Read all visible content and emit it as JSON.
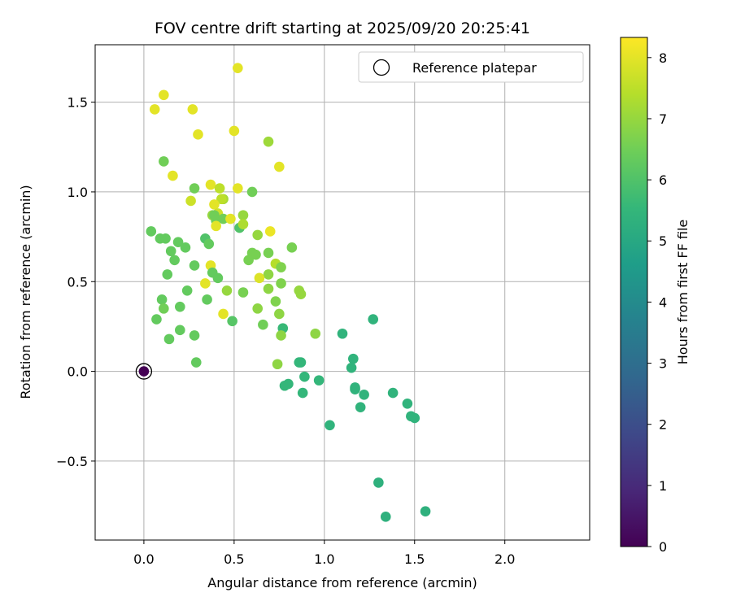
{
  "chart_data": {
    "type": "scatter",
    "title": "FOV centre drift starting at 2025/09/20 20:25:41",
    "xlabel": "Angular distance from reference (arcmin)",
    "ylabel": "Rotation from reference (arcmin)",
    "xlim": [
      -0.27,
      2.47
    ],
    "ylim": [
      -0.94,
      1.82
    ],
    "xticks": [
      0.0,
      0.5,
      1.0,
      1.5,
      2.0
    ],
    "xtick_labels": [
      "0.0",
      "0.5",
      "1.0",
      "1.5",
      "2.0"
    ],
    "yticks": [
      -0.5,
      0.0,
      0.5,
      1.0,
      1.5
    ],
    "ytick_labels": [
      "−0.5",
      "0.0",
      "0.5",
      "1.0",
      "1.5"
    ],
    "grid": true,
    "legend": {
      "position": "top-right",
      "label": "Reference platepar"
    },
    "reference_point": {
      "x": 0.0,
      "y": 0.0,
      "hours": 0.0
    },
    "colorbar": {
      "label": "Hours from first FF file",
      "min": 0,
      "max": 8.33,
      "ticks": [
        0,
        1,
        2,
        3,
        4,
        5,
        6,
        7,
        8
      ],
      "tick_labels": [
        "0",
        "1",
        "2",
        "3",
        "4",
        "5",
        "6",
        "7",
        "8"
      ],
      "colormap": "viridis",
      "colormap_stops": [
        "#440154",
        "#482878",
        "#3e4989",
        "#31688e",
        "#26828e",
        "#1f9e89",
        "#35b779",
        "#6ece58",
        "#b5de2b",
        "#fde725"
      ]
    },
    "points": [
      {
        "x": 1.56,
        "y": -0.78,
        "h": 5.3
      },
      {
        "x": 1.34,
        "y": -0.81,
        "h": 5.3
      },
      {
        "x": 1.3,
        "y": -0.62,
        "h": 5.3
      },
      {
        "x": 1.5,
        "y": -0.26,
        "h": 5.4
      },
      {
        "x": 1.48,
        "y": -0.25,
        "h": 5.4
      },
      {
        "x": 1.46,
        "y": -0.18,
        "h": 5.4
      },
      {
        "x": 1.38,
        "y": -0.12,
        "h": 5.4
      },
      {
        "x": 1.22,
        "y": -0.13,
        "h": 5.4
      },
      {
        "x": 1.2,
        "y": -0.2,
        "h": 5.4
      },
      {
        "x": 1.17,
        "y": -0.09,
        "h": 5.4
      },
      {
        "x": 1.17,
        "y": -0.1,
        "h": 5.4
      },
      {
        "x": 1.03,
        "y": -0.3,
        "h": 5.4
      },
      {
        "x": 0.97,
        "y": -0.05,
        "h": 5.5
      },
      {
        "x": 0.89,
        "y": -0.03,
        "h": 5.5
      },
      {
        "x": 0.88,
        "y": -0.12,
        "h": 5.5
      },
      {
        "x": 0.8,
        "y": -0.07,
        "h": 5.5
      },
      {
        "x": 0.78,
        "y": -0.08,
        "h": 5.5
      },
      {
        "x": 0.87,
        "y": 0.05,
        "h": 5.5
      },
      {
        "x": 0.86,
        "y": 0.05,
        "h": 5.5
      },
      {
        "x": 1.15,
        "y": 0.02,
        "h": 5.4
      },
      {
        "x": 1.16,
        "y": 0.07,
        "h": 5.4
      },
      {
        "x": 1.1,
        "y": 0.21,
        "h": 5.4
      },
      {
        "x": 1.27,
        "y": 0.29,
        "h": 5.4
      },
      {
        "x": 0.77,
        "y": 0.24,
        "h": 5.6
      },
      {
        "x": 0.95,
        "y": 0.21,
        "h": 6.9
      },
      {
        "x": 0.75,
        "y": 0.32,
        "h": 6.9
      },
      {
        "x": 0.76,
        "y": 0.2,
        "h": 6.9
      },
      {
        "x": 0.74,
        "y": 0.04,
        "h": 6.9
      },
      {
        "x": 0.66,
        "y": 0.26,
        "h": 6.5
      },
      {
        "x": 0.63,
        "y": 0.35,
        "h": 6.9
      },
      {
        "x": 0.73,
        "y": 0.39,
        "h": 6.7
      },
      {
        "x": 0.86,
        "y": 0.45,
        "h": 7.0
      },
      {
        "x": 0.87,
        "y": 0.43,
        "h": 7.0
      },
      {
        "x": 0.69,
        "y": 0.46,
        "h": 6.9
      },
      {
        "x": 0.76,
        "y": 0.49,
        "h": 6.7
      },
      {
        "x": 0.69,
        "y": 0.54,
        "h": 6.9
      },
      {
        "x": 0.73,
        "y": 0.6,
        "h": 7.4
      },
      {
        "x": 0.64,
        "y": 0.52,
        "h": 7.9
      },
      {
        "x": 0.76,
        "y": 0.58,
        "h": 6.7
      },
      {
        "x": 0.82,
        "y": 0.69,
        "h": 6.6
      },
      {
        "x": 0.69,
        "y": 0.66,
        "h": 6.6
      },
      {
        "x": 0.62,
        "y": 0.65,
        "h": 6.6
      },
      {
        "x": 0.6,
        "y": 0.66,
        "h": 6.6
      },
      {
        "x": 0.58,
        "y": 0.62,
        "h": 6.6
      },
      {
        "x": 0.63,
        "y": 0.76,
        "h": 7.0
      },
      {
        "x": 0.7,
        "y": 0.78,
        "h": 8.1
      },
      {
        "x": 0.6,
        "y": 1.0,
        "h": 6.5
      },
      {
        "x": 0.69,
        "y": 1.28,
        "h": 7.1
      },
      {
        "x": 0.75,
        "y": 1.14,
        "h": 8.0
      },
      {
        "x": 0.52,
        "y": 1.69,
        "h": 8.0
      },
      {
        "x": 0.5,
        "y": 1.34,
        "h": 8.0
      },
      {
        "x": 0.11,
        "y": 1.54,
        "h": 8.0
      },
      {
        "x": 0.06,
        "y": 1.46,
        "h": 8.0
      },
      {
        "x": 0.27,
        "y": 1.46,
        "h": 8.0
      },
      {
        "x": 0.3,
        "y": 1.32,
        "h": 8.0
      },
      {
        "x": 0.11,
        "y": 1.17,
        "h": 6.5
      },
      {
        "x": 0.16,
        "y": 1.09,
        "h": 8.0
      },
      {
        "x": 0.28,
        "y": 1.02,
        "h": 6.5
      },
      {
        "x": 0.37,
        "y": 1.04,
        "h": 8.0
      },
      {
        "x": 0.42,
        "y": 1.02,
        "h": 7.5
      },
      {
        "x": 0.52,
        "y": 1.02,
        "h": 8.0
      },
      {
        "x": 0.26,
        "y": 0.95,
        "h": 7.7
      },
      {
        "x": 0.44,
        "y": 0.96,
        "h": 7.2
      },
      {
        "x": 0.43,
        "y": 0.96,
        "h": 7.5
      },
      {
        "x": 0.39,
        "y": 0.93,
        "h": 8.0
      },
      {
        "x": 0.41,
        "y": 0.88,
        "h": 7.7
      },
      {
        "x": 0.38,
        "y": 0.87,
        "h": 7.0
      },
      {
        "x": 0.39,
        "y": 0.87,
        "h": 6.5
      },
      {
        "x": 0.4,
        "y": 0.84,
        "h": 6.5
      },
      {
        "x": 0.44,
        "y": 0.85,
        "h": 6.5
      },
      {
        "x": 0.48,
        "y": 0.85,
        "h": 8.0
      },
      {
        "x": 0.4,
        "y": 0.81,
        "h": 8.0
      },
      {
        "x": 0.55,
        "y": 0.87,
        "h": 7.0
      },
      {
        "x": 0.53,
        "y": 0.8,
        "h": 6.0
      },
      {
        "x": 0.55,
        "y": 0.82,
        "h": 7.3
      },
      {
        "x": 0.34,
        "y": 0.74,
        "h": 6.0
      },
      {
        "x": 0.36,
        "y": 0.71,
        "h": 6.3
      },
      {
        "x": 0.04,
        "y": 0.78,
        "h": 6.3
      },
      {
        "x": 0.09,
        "y": 0.74,
        "h": 6.3
      },
      {
        "x": 0.12,
        "y": 0.74,
        "h": 6.3
      },
      {
        "x": 0.19,
        "y": 0.72,
        "h": 6.3
      },
      {
        "x": 0.23,
        "y": 0.69,
        "h": 6.3
      },
      {
        "x": 0.15,
        "y": 0.67,
        "h": 6.3
      },
      {
        "x": 0.17,
        "y": 0.62,
        "h": 6.3
      },
      {
        "x": 0.28,
        "y": 0.59,
        "h": 6.3
      },
      {
        "x": 0.37,
        "y": 0.59,
        "h": 8.0
      },
      {
        "x": 0.38,
        "y": 0.55,
        "h": 6.3
      },
      {
        "x": 0.41,
        "y": 0.52,
        "h": 6.3
      },
      {
        "x": 0.13,
        "y": 0.54,
        "h": 6.3
      },
      {
        "x": 0.34,
        "y": 0.49,
        "h": 8.0
      },
      {
        "x": 0.24,
        "y": 0.45,
        "h": 6.3
      },
      {
        "x": 0.46,
        "y": 0.45,
        "h": 7.0
      },
      {
        "x": 0.55,
        "y": 0.44,
        "h": 6.6
      },
      {
        "x": 0.1,
        "y": 0.4,
        "h": 6.3
      },
      {
        "x": 0.35,
        "y": 0.4,
        "h": 6.3
      },
      {
        "x": 0.11,
        "y": 0.35,
        "h": 6.5
      },
      {
        "x": 0.2,
        "y": 0.36,
        "h": 6.3
      },
      {
        "x": 0.44,
        "y": 0.32,
        "h": 8.0
      },
      {
        "x": 0.07,
        "y": 0.29,
        "h": 6.3
      },
      {
        "x": 0.49,
        "y": 0.28,
        "h": 6.1
      },
      {
        "x": 0.2,
        "y": 0.23,
        "h": 6.3
      },
      {
        "x": 0.28,
        "y": 0.2,
        "h": 6.3
      },
      {
        "x": 0.14,
        "y": 0.18,
        "h": 6.3
      },
      {
        "x": 0.29,
        "y": 0.05,
        "h": 6.3
      }
    ]
  }
}
